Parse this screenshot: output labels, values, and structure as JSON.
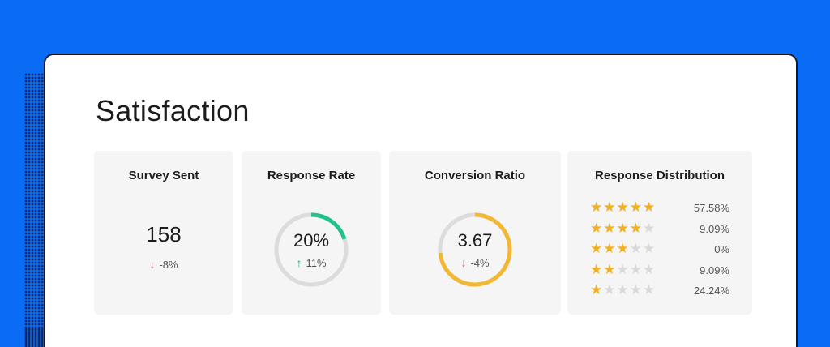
{
  "page": {
    "title": "Satisfaction"
  },
  "cards": {
    "survey_sent": {
      "title": "Survey Sent",
      "value": "158",
      "delta": "-8%",
      "direction": "down"
    },
    "response_rate": {
      "title": "Response Rate",
      "value": "20%",
      "delta": "11%",
      "direction": "up",
      "progress": 0.2,
      "ring_color": "#22c18a"
    },
    "conversion_ratio": {
      "title": "Conversion Ratio",
      "value": "3.67",
      "delta": "-4%",
      "direction": "down",
      "progress": 0.734,
      "ring_color": "#f2b833"
    },
    "response_distribution": {
      "title": "Response Distribution",
      "rows": [
        {
          "stars": 5,
          "percent": "57.58%"
        },
        {
          "stars": 4,
          "percent": "9.09%"
        },
        {
          "stars": 3,
          "percent": "0%"
        },
        {
          "stars": 2,
          "percent": "9.09%"
        },
        {
          "stars": 1,
          "percent": "24.24%"
        }
      ]
    }
  },
  "colors": {
    "background": "#0a6cf5",
    "star_filled": "#f2b01e",
    "star_empty": "#d9d9db",
    "down": "#e0606a",
    "up": "#1fb57a"
  }
}
